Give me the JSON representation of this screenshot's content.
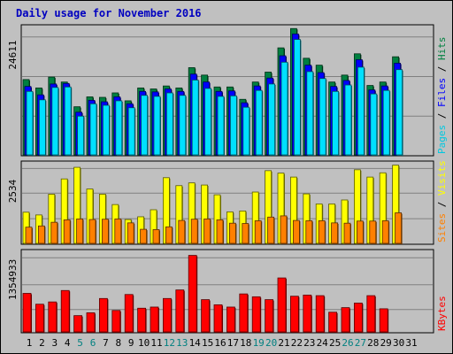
{
  "chart_data": {
    "type": "bar",
    "title": "Daily usage for November 2016",
    "categories": [
      "1",
      "2",
      "3",
      "4",
      "5",
      "6",
      "7",
      "8",
      "9",
      "10",
      "11",
      "12",
      "13",
      "14",
      "15",
      "16",
      "17",
      "18",
      "19",
      "20",
      "21",
      "22",
      "23",
      "24",
      "25",
      "26",
      "27",
      "28",
      "29",
      "30",
      "31"
    ],
    "weekend_days": [
      "5",
      "6",
      "12",
      "13",
      "19",
      "20",
      "26",
      "27"
    ],
    "panels": [
      {
        "name": "pages-files-hits",
        "ymax_label": "24611",
        "ylim": [
          0,
          24611
        ],
        "legend": [
          "Pages",
          "Files",
          "Hits"
        ],
        "series": [
          {
            "name": "Hits",
            "color": "#008040",
            "values": [
              15400,
              13700,
              15900,
              14900,
              9900,
              11900,
              11800,
              12700,
              11100,
              13700,
              13500,
              14100,
              13700,
              17800,
              16300,
              13900,
              13900,
              11400,
              14900,
              16900,
              21800,
              25700,
              19700,
              18300,
              14900,
              16300,
              20600,
              14200,
              14900,
              20000,
              0
            ]
          },
          {
            "name": "Files",
            "color": "#0000ff",
            "values": [
              14000,
              12300,
              14500,
              14600,
              8800,
              11200,
              10900,
              11900,
              10500,
              13000,
              12900,
              13500,
              13000,
              16500,
              14900,
              13000,
              13100,
              10700,
              14100,
              15700,
              20200,
              24600,
              18300,
              16800,
              14000,
              15200,
              19400,
              13300,
              14100,
              18700,
              0
            ]
          },
          {
            "name": "Pages",
            "color": "#00e0ff",
            "values": [
              13000,
              11300,
              13800,
              13900,
              8000,
              10500,
              10200,
              11100,
              9700,
              12200,
              12000,
              12700,
              12200,
              15300,
              13600,
              12000,
              12100,
              9800,
              13200,
              14500,
              18900,
              23500,
              17000,
              15600,
              13000,
              14300,
              17900,
              12500,
              13200,
              17400,
              0
            ]
          }
        ]
      },
      {
        "name": "sites-visits",
        "ymax_label": "2534",
        "ylim": [
          0,
          2534
        ],
        "legend": [
          "Sites",
          "Visits"
        ],
        "series": [
          {
            "name": "Visits",
            "color": "#ffff00",
            "values": [
              1050,
              960,
              1640,
              2140,
              2520,
              1810,
              1640,
              1300,
              810,
              900,
              1130,
              2180,
              1920,
              2010,
              1940,
              1620,
              1060,
              1090,
              1710,
              2410,
              2330,
              2200,
              1650,
              1320,
              1320,
              1450,
              2440,
              2200,
              2340,
              2590,
              0
            ]
          },
          {
            "name": "Sites",
            "color": "#ff8000",
            "values": [
              560,
              600,
              720,
              800,
              830,
              810,
              820,
              830,
              700,
              490,
              480,
              570,
              780,
              820,
              830,
              800,
              690,
              680,
              770,
              890,
              930,
              780,
              770,
              770,
              700,
              690,
              760,
              760,
              770,
              1030,
              0
            ]
          }
        ]
      },
      {
        "name": "kbytes",
        "ymax_label": "1354933",
        "ylim": [
          0,
          1354933
        ],
        "legend": [
          "KBytes"
        ],
        "series": [
          {
            "name": "KBytes",
            "color": "#ff0000",
            "values": [
              690000,
              500000,
              540000,
              740000,
              300000,
              350000,
              600000,
              390000,
              670000,
              430000,
              450000,
              600000,
              750000,
              1354933,
              580000,
              490000,
              450000,
              680000,
              630000,
              580000,
              960000,
              640000,
              660000,
              650000,
              360000,
              440000,
              520000,
              650000,
              420000,
              0,
              0
            ]
          }
        ]
      }
    ]
  }
}
